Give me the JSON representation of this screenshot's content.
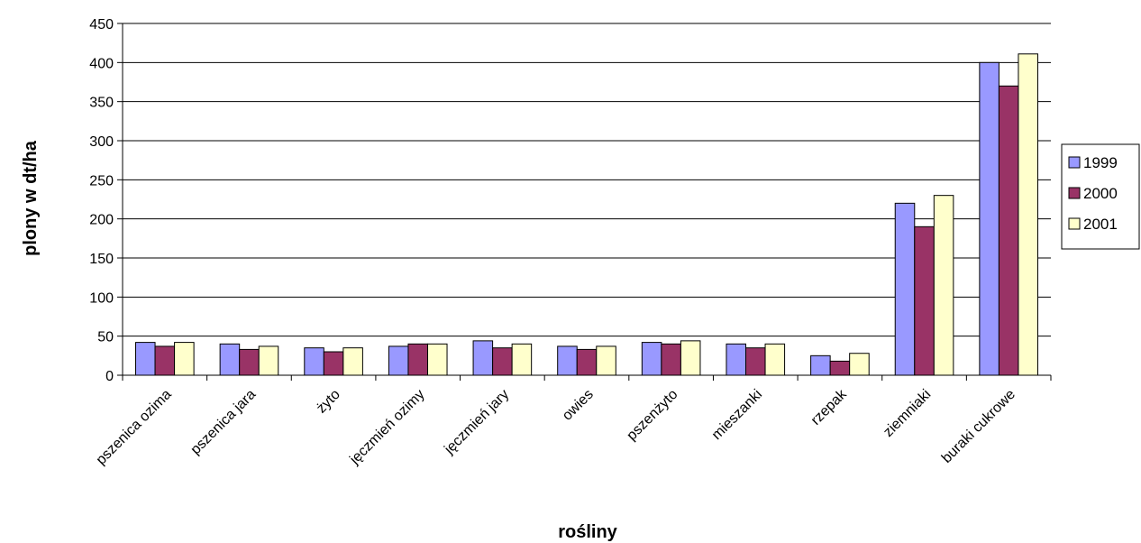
{
  "chart_data": {
    "type": "bar",
    "title": "",
    "xlabel": "rośliny",
    "ylabel": "plony w dt/ha",
    "categories": [
      "pszenica ozima",
      "pszenica jara",
      "żyto",
      "jęczmień ozimy",
      "jęczmień jary",
      "owies",
      "pszenżyto",
      "mieszanki",
      "rzepak",
      "ziemniaki",
      "buraki cukrowe"
    ],
    "series": [
      {
        "name": "1999",
        "color": "#9999ff",
        "values": [
          42,
          40,
          35,
          37,
          44,
          37,
          42,
          40,
          25,
          220,
          400
        ]
      },
      {
        "name": "2000",
        "color": "#993366",
        "values": [
          37,
          33,
          30,
          40,
          35,
          33,
          40,
          35,
          18,
          190,
          370
        ]
      },
      {
        "name": "2001",
        "color": "#ffffcc",
        "values": [
          42,
          37,
          35,
          40,
          40,
          37,
          44,
          40,
          28,
          230,
          411
        ]
      }
    ],
    "ylim": [
      0,
      450
    ],
    "yticks": [
      0,
      50,
      100,
      150,
      200,
      250,
      300,
      350,
      400,
      450
    ],
    "grid": true,
    "legend_position": "right"
  }
}
